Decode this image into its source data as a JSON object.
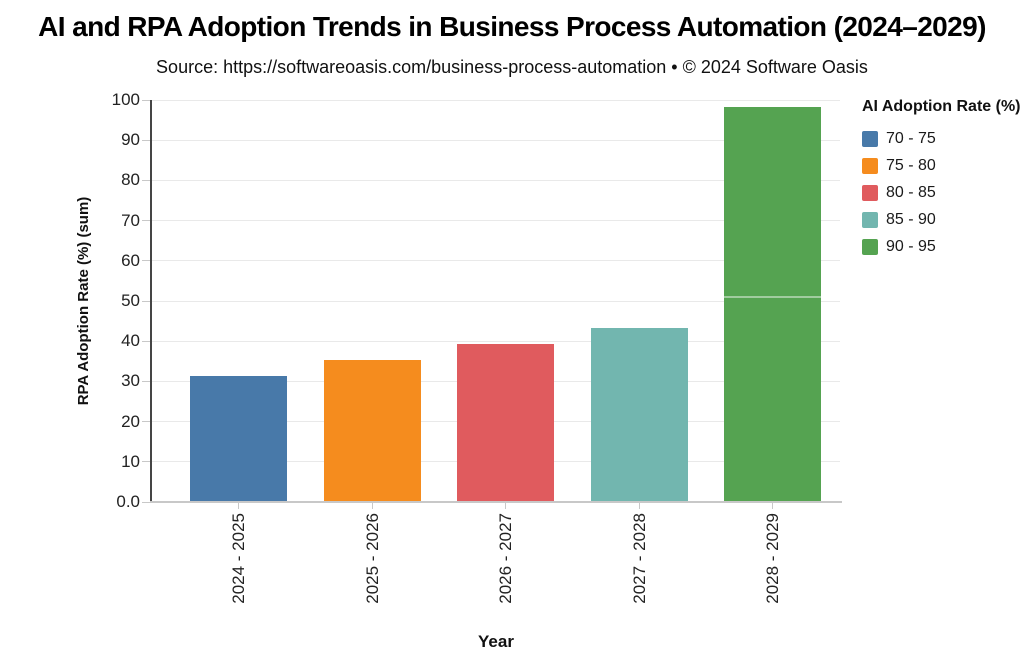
{
  "chart_data": {
    "type": "bar",
    "title": "AI and RPA Adoption Trends in Business Process Automation (2024–2029)",
    "subtitle": "Source: https://softwareoasis.com/business-process-automation • © 2024 Software Oasis",
    "xlabel": "Year",
    "ylabel": "RPA Adoption Rate (%) (sum)",
    "ylim": [
      0,
      100
    ],
    "ytick_values": [
      100,
      90,
      80,
      70,
      60,
      50,
      40,
      30,
      20,
      10,
      0
    ],
    "ytick_labels": [
      "100",
      "90",
      "80",
      "70",
      "60",
      "50",
      "40",
      "30",
      "20",
      "10",
      "0.0"
    ],
    "grid": true,
    "categories": [
      "2024 - 2025",
      "2025 - 2026",
      "2026 - 2027",
      "2027 - 2028",
      "2028 - 2029"
    ],
    "values": [
      31,
      35,
      39,
      43,
      98
    ],
    "segments": [
      [
        31
      ],
      [
        35
      ],
      [
        39
      ],
      [
        43
      ],
      [
        51,
        47
      ]
    ],
    "bar_colors": [
      "#4879a9",
      "#f58c1e",
      "#e05b5e",
      "#72b6af",
      "#55a351"
    ],
    "legend": {
      "title": "AI Adoption Rate (%)",
      "position": "right",
      "entries": [
        {
          "label": "70 - 75",
          "color": "#4879a9"
        },
        {
          "label": "75 - 80",
          "color": "#f58c1e"
        },
        {
          "label": "80 - 85",
          "color": "#e05b5e"
        },
        {
          "label": "85 - 90",
          "color": "#72b6af"
        },
        {
          "label": "90 - 95",
          "color": "#55a351"
        }
      ]
    }
  }
}
